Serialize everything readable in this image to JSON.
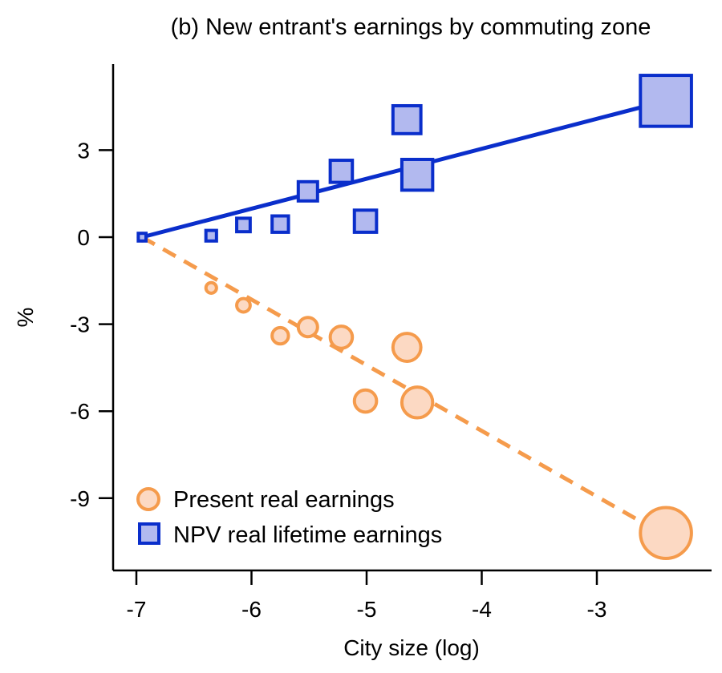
{
  "chart_data": {
    "type": "scatter",
    "title": "(b) New entrant's earnings by commuting zone",
    "xlabel": "City size (log)",
    "ylabel": "%",
    "xlim": [
      -7.2,
      -2.0
    ],
    "ylim": [
      -11.5,
      5.9
    ],
    "x_ticks": [
      -7,
      -6,
      -5,
      -4,
      -3
    ],
    "x_tick_labels": [
      "-7",
      "-6",
      "-5",
      "-4",
      "-3"
    ],
    "y_ticks": [
      3,
      0,
      -3,
      -6,
      -9
    ],
    "y_tick_labels": [
      "3",
      "0",
      "-3",
      "-6",
      "-9"
    ],
    "grid": false,
    "legend_position": "bottom-left",
    "series": [
      {
        "name": "Present real earnings",
        "marker": "circle",
        "fill": "#fcd9c3",
        "stroke": "#f59b4c",
        "line_style": "dashed",
        "points": [
          {
            "x": -6.95,
            "y": 0.0,
            "size": 1
          },
          {
            "x": -6.35,
            "y": -1.75,
            "size": 2
          },
          {
            "x": -6.07,
            "y": -2.35,
            "size": 3
          },
          {
            "x": -5.75,
            "y": -3.4,
            "size": 4
          },
          {
            "x": -5.51,
            "y": -3.1,
            "size": 5
          },
          {
            "x": -5.22,
            "y": -3.45,
            "size": 6
          },
          {
            "x": -5.01,
            "y": -5.65,
            "size": 6
          },
          {
            "x": -4.65,
            "y": -3.8,
            "size": 8
          },
          {
            "x": -4.56,
            "y": -5.7,
            "size": 9
          },
          {
            "x": -2.4,
            "y": -10.2,
            "size": 16
          }
        ],
        "fit": {
          "x": [
            -6.95,
            -2.4
          ],
          "y": [
            0.0,
            -10.3
          ]
        }
      },
      {
        "name": "NPV real lifetime earnings",
        "marker": "square",
        "fill": "#b2b9ef",
        "stroke": "#0a2ecb",
        "line_style": "solid",
        "points": [
          {
            "x": -6.95,
            "y": 0.0,
            "size": 1
          },
          {
            "x": -6.35,
            "y": 0.05,
            "size": 2
          },
          {
            "x": -6.07,
            "y": 0.42,
            "size": 3
          },
          {
            "x": -5.75,
            "y": 0.45,
            "size": 4
          },
          {
            "x": -5.51,
            "y": 1.58,
            "size": 5
          },
          {
            "x": -5.22,
            "y": 2.27,
            "size": 6
          },
          {
            "x": -5.01,
            "y": 0.55,
            "size": 6
          },
          {
            "x": -4.65,
            "y": 4.05,
            "size": 8
          },
          {
            "x": -4.56,
            "y": 2.15,
            "size": 9
          },
          {
            "x": -2.4,
            "y": 4.7,
            "size": 16
          }
        ],
        "fit": {
          "x": [
            -6.95,
            -2.4
          ],
          "y": [
            0.0,
            4.7
          ]
        }
      }
    ]
  }
}
